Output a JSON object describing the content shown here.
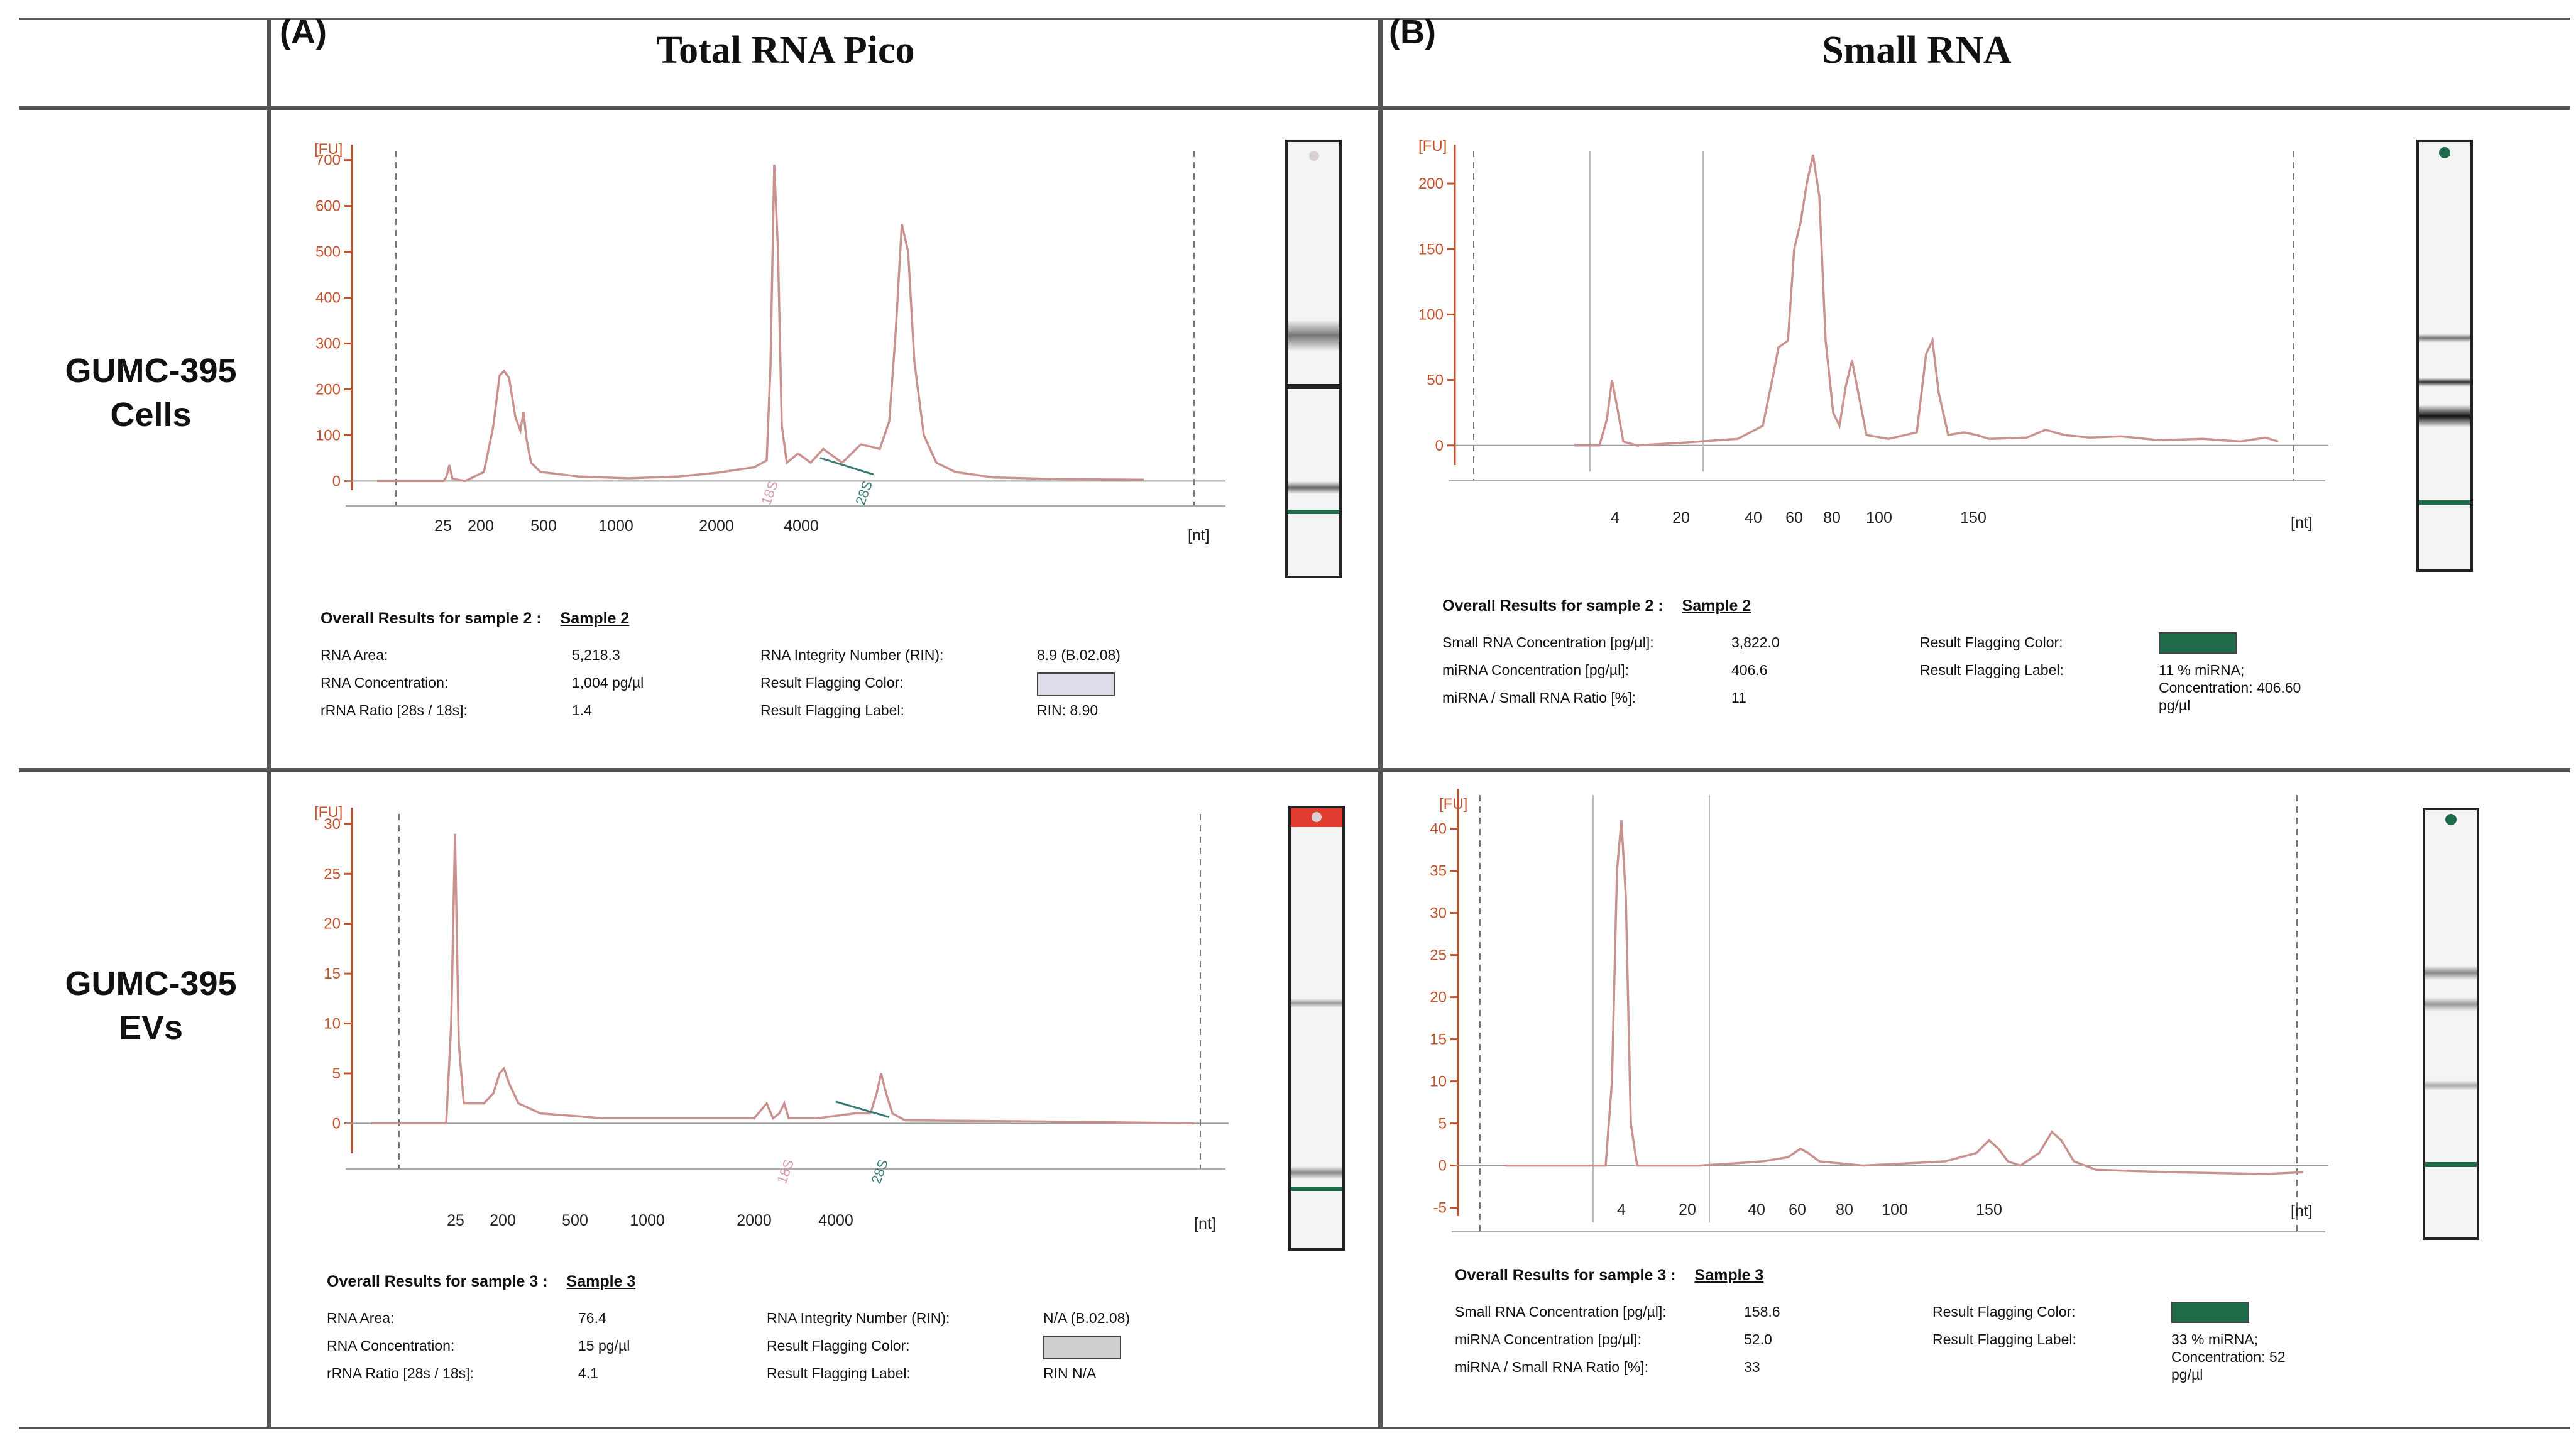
{
  "column_headers": [
    {
      "letter": "(A)",
      "title": "Total RNA Pico"
    },
    {
      "letter": "(B)",
      "title": "Small RNA"
    }
  ],
  "row_labels": [
    {
      "line1": "GUMC-395",
      "line2": "Cells"
    },
    {
      "line1": "GUMC-395",
      "line2": "EVs"
    }
  ],
  "colors": {
    "trace": "#c9928e",
    "axis": "#c0502a",
    "green_band": "#1e6b4a",
    "red_cap": "#e03b2e"
  },
  "chart_data": [
    {
      "id": "pico-cells",
      "type": "line",
      "title": "Total RNA Pico — GUMC-395 Cells",
      "ylabel": "[FU]",
      "xlabel": "[nt]",
      "ylim": [
        -20,
        720
      ],
      "yticks": [
        "0",
        "100",
        "200",
        "300",
        "400",
        "500",
        "600",
        "700"
      ],
      "xticks": [
        "25",
        "200",
        "500",
        "1000",
        "2000",
        "4000"
      ],
      "markers": [
        "18S",
        "28S"
      ],
      "series": [
        {
          "name": "electropherogram",
          "peaks": [
            {
              "x": "25",
              "y": 35
            },
            {
              "x": "200",
              "y": 240
            },
            {
              "x": "200",
              "y": 150
            },
            {
              "x": "18S",
              "y": 690
            },
            {
              "x": "28S",
              "y": 570
            }
          ]
        }
      ],
      "results": {
        "header": "Overall Results for sample 2 :",
        "sample": "Sample 2",
        "left": [
          {
            "label": "RNA Area:",
            "value": "5,218.3"
          },
          {
            "label": "RNA Concentration:",
            "value": "1,004 pg/µl"
          },
          {
            "label": "rRNA Ratio [28s / 18s]:",
            "value": "1.4"
          }
        ],
        "right": [
          {
            "label": "RNA Integrity Number (RIN):",
            "value": "8.9   (B.02.08)"
          },
          {
            "label": "Result Flagging Color:",
            "value": "",
            "swatch": "#dcdde8"
          },
          {
            "label": "Result Flagging Label:",
            "value": "RIN: 8.90"
          }
        ]
      }
    },
    {
      "id": "small-cells",
      "type": "line",
      "title": "Small RNA — GUMC-395 Cells",
      "ylabel": "[FU]",
      "xlabel": "[nt]",
      "ylim": [
        -15,
        225
      ],
      "yticks": [
        "0",
        "50",
        "100",
        "150",
        "200"
      ],
      "xticks": [
        "4",
        "20",
        "40",
        "60",
        "80",
        "100",
        "150"
      ],
      "series": [
        {
          "name": "electropherogram",
          "peaks": [
            {
              "x": "4",
              "y": 50
            },
            {
              "x": "60",
              "y": 75
            },
            {
              "x": "60",
              "y": 220
            },
            {
              "x": "80",
              "y": 65
            },
            {
              "x": "150",
              "y": 80
            }
          ]
        }
      ],
      "results": {
        "header": "Overall Results for sample 2 :",
        "sample": "Sample 2",
        "left": [
          {
            "label": "Small RNA Concentration [pg/µl]:",
            "value": "3,822.0"
          },
          {
            "label": "miRNA Concentration [pg/µl]:",
            "value": "406.6"
          },
          {
            "label": "miRNA / Small RNA Ratio [%]:",
            "value": "11"
          }
        ],
        "right": [
          {
            "label": "Result Flagging Color:",
            "value": "",
            "swatch": "#1e6b4a"
          },
          {
            "label": "Result Flagging Label:",
            "value": "11 % miRNA;\nConcentration: 406.60\npg/µl"
          }
        ]
      }
    },
    {
      "id": "pico-evs",
      "type": "line",
      "title": "Total RNA Pico — GUMC-395 EVs",
      "ylabel": "[FU]",
      "xlabel": "[nt]",
      "ylim": [
        -3,
        31
      ],
      "yticks": [
        "0",
        "5",
        "10",
        "15",
        "20",
        "25",
        "30"
      ],
      "xticks": [
        "25",
        "200",
        "500",
        "1000",
        "2000",
        "4000"
      ],
      "markers": [
        "18S",
        "28S"
      ],
      "series": [
        {
          "name": "electropherogram",
          "peaks": [
            {
              "x": "25",
              "y": 29
            },
            {
              "x": "200",
              "y": 5.5
            },
            {
              "x": "18S",
              "y": 2
            },
            {
              "x": "28S",
              "y": 5
            }
          ]
        }
      ],
      "results": {
        "header": "Overall Results for sample 3 :",
        "sample": "Sample 3",
        "left": [
          {
            "label": "RNA Area:",
            "value": "76.4"
          },
          {
            "label": "RNA Concentration:",
            "value": "15 pg/µl"
          },
          {
            "label": "rRNA Ratio [28s / 18s]:",
            "value": "4.1"
          }
        ],
        "right": [
          {
            "label": "RNA Integrity Number (RIN):",
            "value": "N/A   (B.02.08)"
          },
          {
            "label": "Result Flagging Color:",
            "value": "",
            "swatch": "#cfcfcf"
          },
          {
            "label": "Result Flagging Label:",
            "value": "RIN N/A"
          }
        ]
      }
    },
    {
      "id": "small-evs",
      "type": "line",
      "title": "Small RNA — GUMC-395 EVs",
      "ylabel": "[FU]",
      "xlabel": "[nt]",
      "ylim": [
        -6,
        44
      ],
      "yticks": [
        "-5",
        "0",
        "5",
        "10",
        "15",
        "20",
        "25",
        "30",
        "35",
        "40"
      ],
      "xticks": [
        "4",
        "20",
        "40",
        "60",
        "80",
        "100",
        "150"
      ],
      "series": [
        {
          "name": "electropherogram",
          "peaks": [
            {
              "x": "4",
              "y": 41
            },
            {
              "x": "60",
              "y": 2
            },
            {
              "x": "150",
              "y": 3
            },
            {
              "x": "150",
              "y": 4
            }
          ]
        }
      ],
      "results": {
        "header": "Overall Results for sample 3 :",
        "sample": "Sample 3",
        "left": [
          {
            "label": "Small RNA Concentration [pg/µl]:",
            "value": "158.6"
          },
          {
            "label": "miRNA Concentration [pg/µl]:",
            "value": "52.0"
          },
          {
            "label": "miRNA / Small RNA Ratio [%]:",
            "value": "33"
          }
        ],
        "right": [
          {
            "label": "Result Flagging Color:",
            "value": "",
            "swatch": "#1e6b4a"
          },
          {
            "label": "Result Flagging Label:",
            "value": "33 % miRNA;\nConcentration: 52\npg/µl"
          }
        ]
      }
    }
  ]
}
